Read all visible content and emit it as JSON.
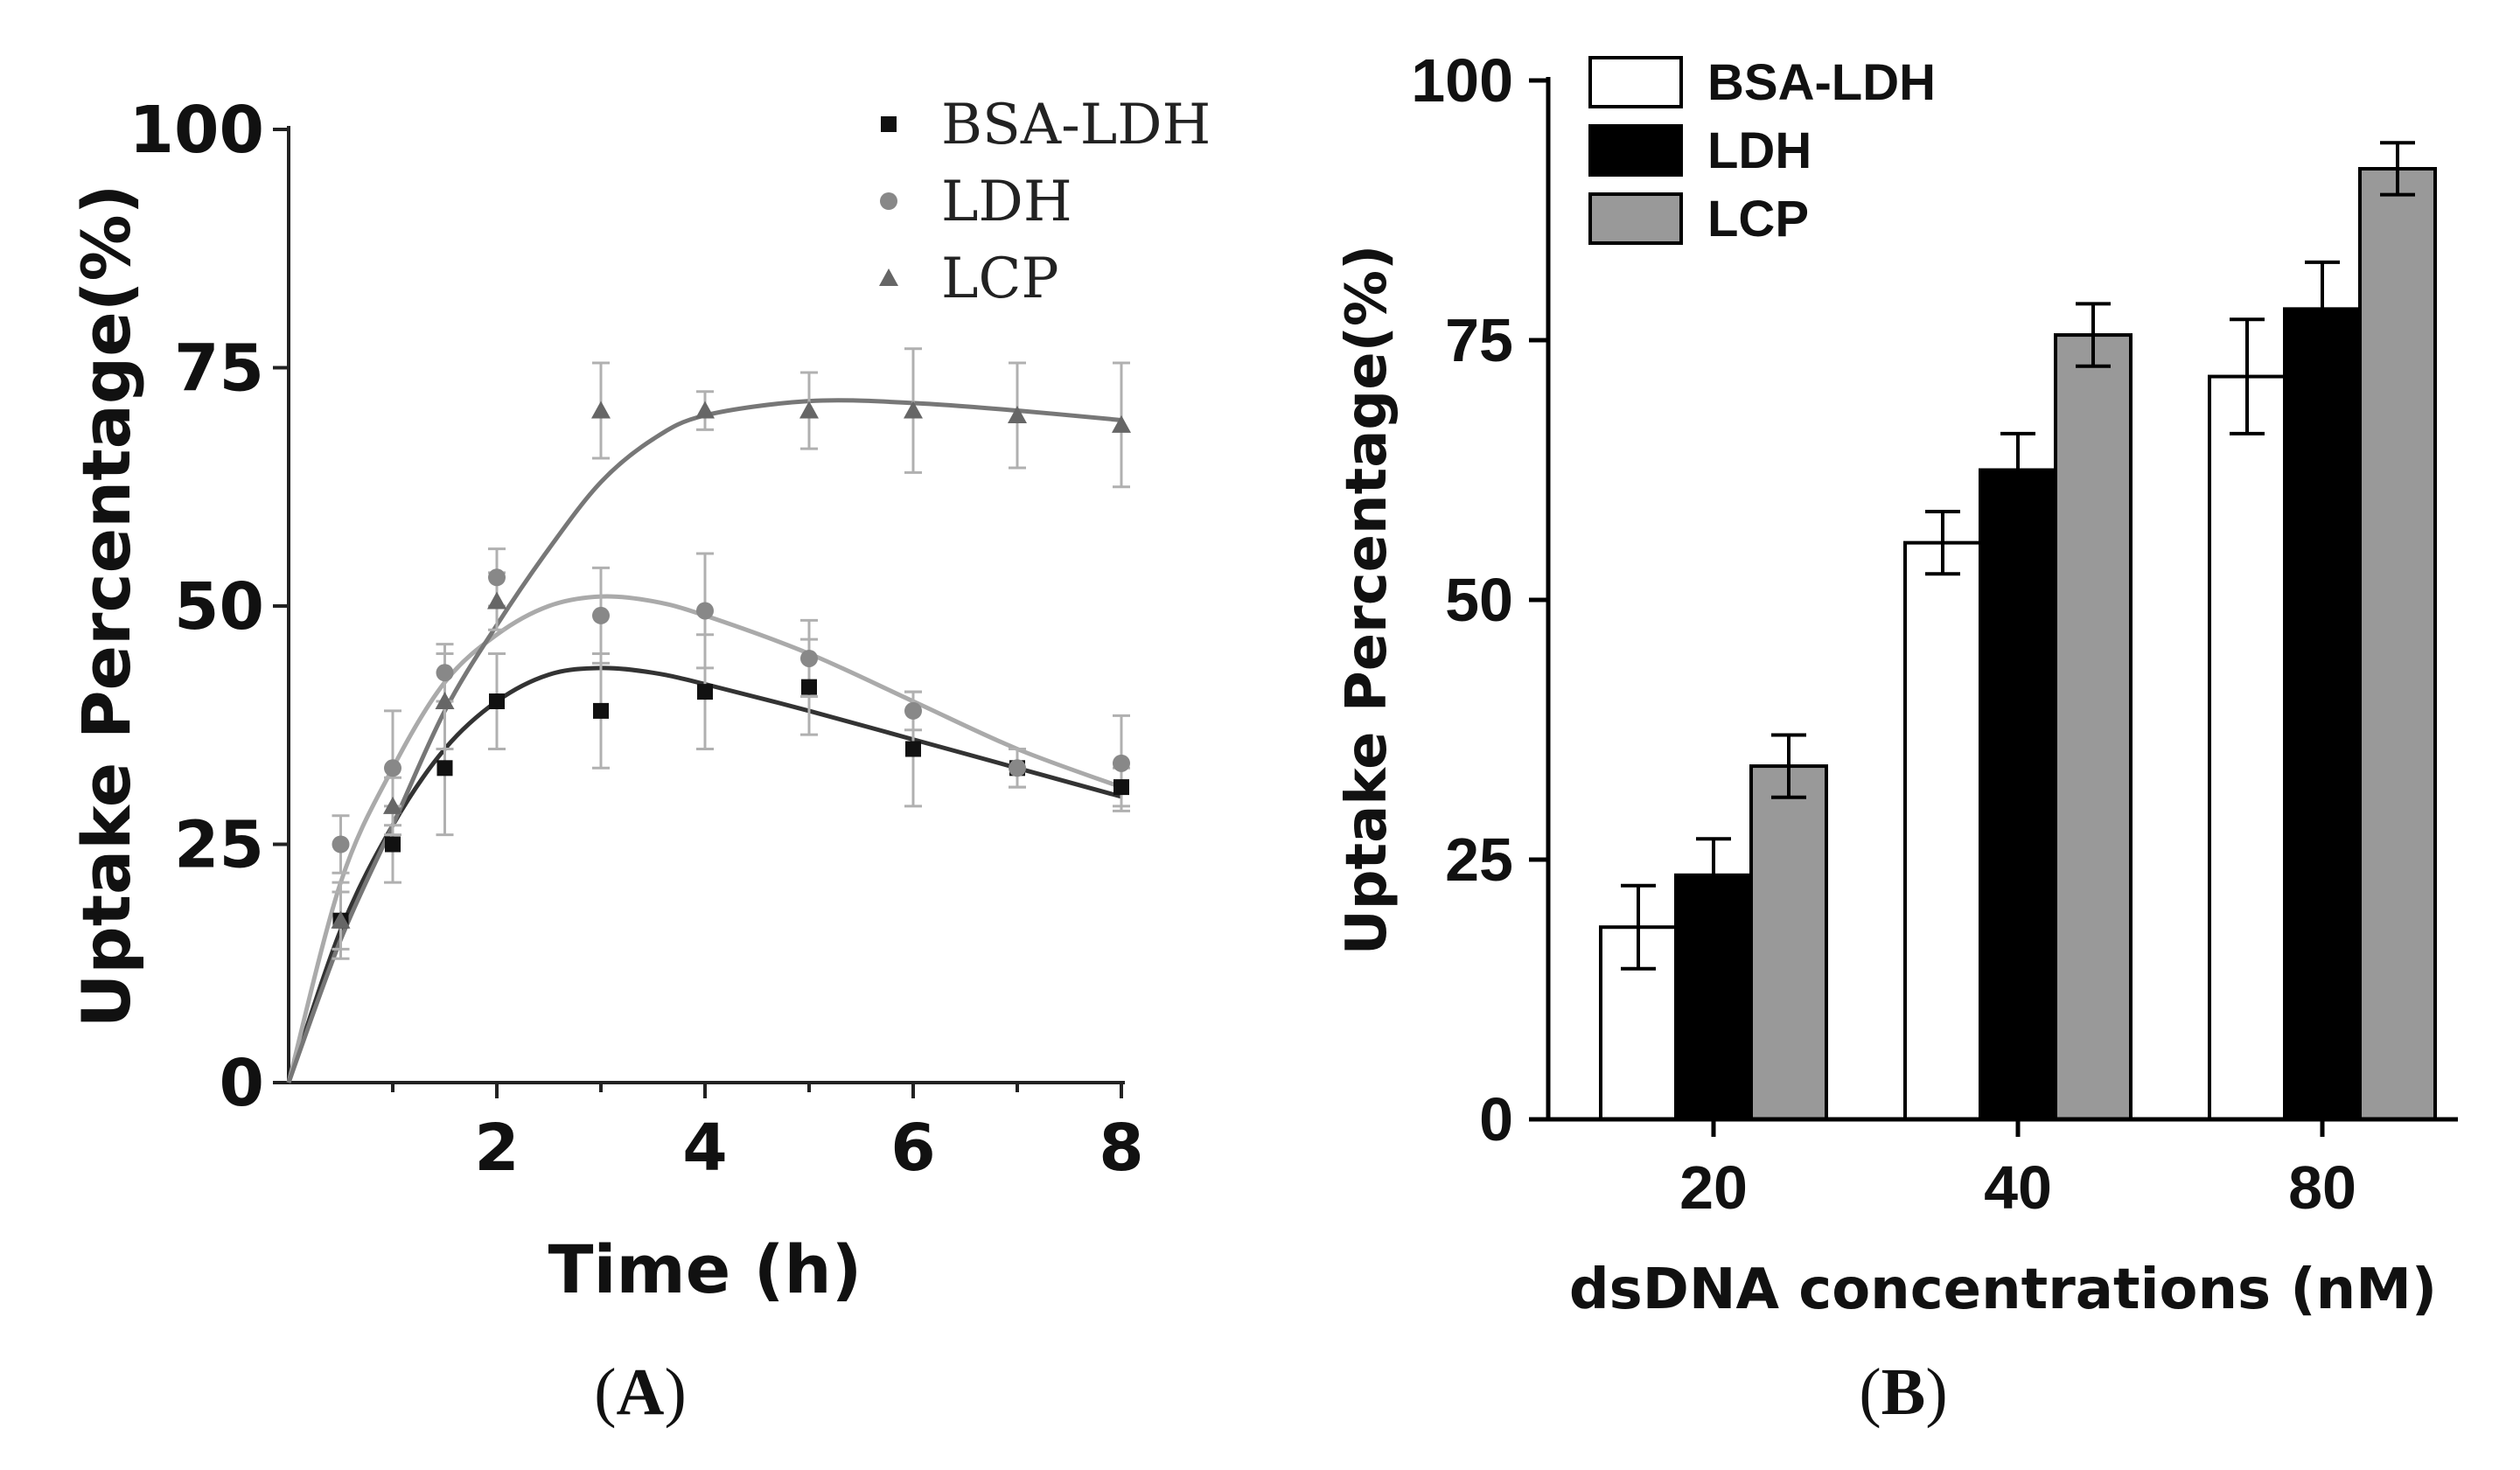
{
  "chart_data": [
    {
      "panel": "(A)",
      "panel_letter": "A",
      "type": "line",
      "xlabel": "Time (h)",
      "ylabel": "Uptake Percentage(%)",
      "xlim": [
        0,
        8
      ],
      "ylim": [
        0,
        100
      ],
      "xticks": [
        2,
        4,
        6,
        8
      ],
      "yticks": [
        0,
        25,
        50,
        75,
        100
      ],
      "legend_position": "top-right",
      "grid": false,
      "series": [
        {
          "name": "BSA-LDH",
          "marker": "square",
          "color": "#111111",
          "line_color": "#333333",
          "points": [
            {
              "x": 0.5,
              "y": 17,
              "err": 3
            },
            {
              "x": 1,
              "y": 25,
              "err": 4
            },
            {
              "x": 1.5,
              "y": 33,
              "err": 7
            },
            {
              "x": 2,
              "y": 40,
              "err": 5
            },
            {
              "x": 3,
              "y": 39,
              "err": 6
            },
            {
              "x": 4,
              "y": 41,
              "err": 6
            },
            {
              "x": 5,
              "y": 41.5,
              "err": 5
            },
            {
              "x": 6,
              "y": 35,
              "err": 6
            },
            {
              "x": 7,
              "y": 33,
              "err": 2
            },
            {
              "x": 8,
              "y": 31,
              "err": 2
            }
          ],
          "curve": [
            [
              0,
              0
            ],
            [
              0.5,
              16
            ],
            [
              1,
              27
            ],
            [
              1.5,
              35
            ],
            [
              2,
              40
            ],
            [
              2.5,
              42.8
            ],
            [
              3,
              43.5
            ],
            [
              3.5,
              43
            ],
            [
              4,
              41.8
            ],
            [
              5,
              39
            ],
            [
              6,
              36
            ],
            [
              7,
              33
            ],
            [
              8,
              30
            ]
          ]
        },
        {
          "name": "LDH",
          "marker": "circle",
          "color": "#888888",
          "line_color": "#aaaaaa",
          "points": [
            {
              "x": 0.5,
              "y": 25,
              "err": 3
            },
            {
              "x": 1,
              "y": 33,
              "err": 6
            },
            {
              "x": 1.5,
              "y": 43,
              "err": 3
            },
            {
              "x": 2,
              "y": 53,
              "err": 3
            },
            {
              "x": 3,
              "y": 49,
              "err": 5
            },
            {
              "x": 4,
              "y": 49.5,
              "err": 6
            },
            {
              "x": 5,
              "y": 44.5,
              "err": 4
            },
            {
              "x": 6,
              "y": 39,
              "err": 2
            },
            {
              "x": 7,
              "y": 33,
              "err": 2
            },
            {
              "x": 8,
              "y": 33.5,
              "err": 5
            }
          ],
          "curve": [
            [
              0,
              0
            ],
            [
              0.5,
              21
            ],
            [
              1,
              33
            ],
            [
              1.5,
              42
            ],
            [
              2,
              47
            ],
            [
              2.5,
              50
            ],
            [
              3,
              51
            ],
            [
              3.5,
              50.5
            ],
            [
              4,
              49
            ],
            [
              5,
              45
            ],
            [
              6,
              40
            ],
            [
              7,
              35
            ],
            [
              8,
              31
            ]
          ]
        },
        {
          "name": "LCP",
          "marker": "triangle",
          "color": "#666666",
          "line_color": "#777777",
          "points": [
            {
              "x": 0.5,
              "y": 17,
              "err": 4
            },
            {
              "x": 1,
              "y": 29,
              "err": 3
            },
            {
              "x": 1.5,
              "y": 40,
              "err": 5
            },
            {
              "x": 2,
              "y": 50.5,
              "err": 3
            },
            {
              "x": 3,
              "y": 70.5,
              "err": 5
            },
            {
              "x": 4,
              "y": 70.5,
              "err": 2
            },
            {
              "x": 5,
              "y": 70.5,
              "err": 4
            },
            {
              "x": 6,
              "y": 70.5,
              "err": 6.5
            },
            {
              "x": 7,
              "y": 70,
              "err": 5.5
            },
            {
              "x": 8,
              "y": 69,
              "err": 6.5
            }
          ],
          "curve": [
            [
              0,
              0
            ],
            [
              0.5,
              15
            ],
            [
              1,
              27
            ],
            [
              1.5,
              39
            ],
            [
              2,
              48
            ],
            [
              2.5,
              56
            ],
            [
              3,
              63
            ],
            [
              3.5,
              67.5
            ],
            [
              4,
              70
            ],
            [
              5,
              71.5
            ],
            [
              6,
              71.3
            ],
            [
              7,
              70.5
            ],
            [
              8,
              69.5
            ]
          ]
        }
      ]
    },
    {
      "panel": "(B)",
      "panel_letter": "B",
      "type": "bar",
      "xlabel": "dsDNA concentrations (nM)",
      "ylabel": "Uptake Percentage(%)",
      "ylim": [
        0,
        100
      ],
      "yticks": [
        0,
        25,
        50,
        75,
        100
      ],
      "categories": [
        "20",
        "40",
        "80"
      ],
      "legend_position": "top-left",
      "grid": false,
      "series": [
        {
          "name": "BSA-LDH",
          "fill": "#ffffff",
          "values": [
            18.5,
            55.5,
            71.5
          ],
          "errors": [
            4,
            3,
            5.5
          ]
        },
        {
          "name": "LDH",
          "fill": "#000000",
          "values": [
            23.5,
            62.5,
            78
          ],
          "errors": [
            3.5,
            3.5,
            4.5
          ]
        },
        {
          "name": "LCP",
          "fill": "#999999",
          "values": [
            34,
            75.5,
            91.5
          ],
          "errors": [
            3,
            3,
            2.5
          ]
        }
      ]
    }
  ]
}
